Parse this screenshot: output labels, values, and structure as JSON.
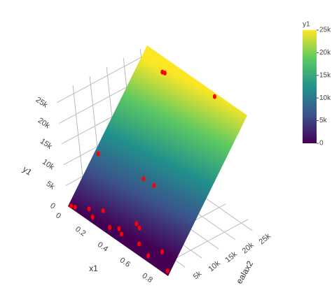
{
  "chart_data": {
    "type": "surface3d",
    "x_label": "x1",
    "y_label": "ealax2",
    "z_label": "y1",
    "xlim": [
      0,
      0.9
    ],
    "xticks": [
      0,
      0.2,
      0.4,
      0.6,
      0.8
    ],
    "ylim": [
      0,
      27000
    ],
    "yticks": [
      {
        "value": 5000,
        "label": "5k"
      },
      {
        "value": 10000,
        "label": "10k"
      },
      {
        "value": 15000,
        "label": "15k"
      },
      {
        "value": 20000,
        "label": "20k"
      },
      {
        "value": 25000,
        "label": "25k"
      }
    ],
    "zlim": [
      0,
      27000
    ],
    "zticks": [
      0,
      {
        "value": 5000,
        "label": "5k"
      },
      {
        "value": 10000,
        "label": "10k"
      },
      {
        "value": 15000,
        "label": "15k"
      },
      {
        "value": 20000,
        "label": "20k"
      },
      {
        "value": 25000,
        "label": "25k"
      }
    ],
    "grid": true,
    "colorscale": [
      "#440154",
      "#3b528b",
      "#21918c",
      "#5ec962",
      "#fde725"
    ],
    "colorbar": {
      "title": "y1",
      "lim": [
        0,
        25000
      ],
      "ticks": [
        0,
        {
          "value": 5000,
          "label": "5k"
        },
        {
          "value": 10000,
          "label": "10k"
        },
        {
          "value": 15000,
          "label": "15k"
        },
        {
          "value": 20000,
          "label": "20k"
        },
        {
          "value": 25000,
          "label": "25k"
        }
      ]
    },
    "points": {
      "color": "#ff0000",
      "x1": [
        0.02,
        0.05,
        0.15,
        0.2,
        0.25,
        0.35,
        0.45,
        0.55,
        0.6,
        0.7,
        0.78,
        0.88,
        0.03,
        0.415,
        0.507,
        0.19,
        0.21,
        0.62,
        0.516,
        0.415
      ],
      "ealax2": [
        300,
        500,
        1500,
        800,
        2500,
        1000,
        1200,
        3500,
        1500,
        800,
        2500,
        600,
        9200,
        10000,
        10100,
        25000,
        25100,
        26500,
        3800,
        1660
      ],
      "y1": [
        300,
        500,
        1500,
        800,
        2500,
        1000,
        1200,
        3500,
        1500,
        800,
        2500,
        600,
        9200,
        10000,
        10100,
        25000,
        25100,
        26500,
        3800,
        1660
      ]
    }
  }
}
